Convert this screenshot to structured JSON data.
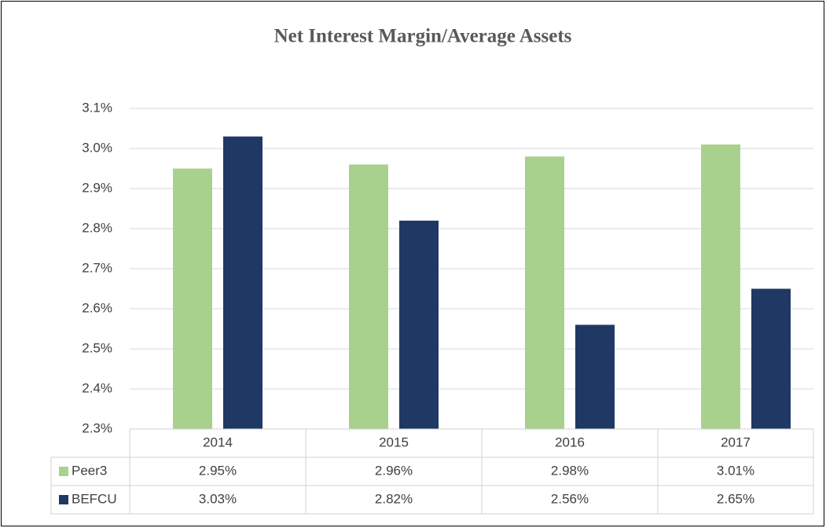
{
  "chart_data": {
    "type": "bar",
    "title": "Net Interest Margin/Average Assets",
    "categories": [
      "2014",
      "2015",
      "2016",
      "2017"
    ],
    "series": [
      {
        "name": "Peer3",
        "color": "#a9d18e",
        "values": [
          2.95,
          2.96,
          2.98,
          3.01
        ],
        "value_labels": [
          "2.95%",
          "2.96%",
          "2.98%",
          "3.01%"
        ]
      },
      {
        "name": "BEFCU",
        "color": "#1f3864",
        "values": [
          3.03,
          2.82,
          2.56,
          2.65
        ],
        "value_labels": [
          "3.03%",
          "2.82%",
          "2.56%",
          "2.65%"
        ]
      }
    ],
    "ylim": [
      2.3,
      3.1
    ],
    "yticks": [
      {
        "value": 2.3,
        "label": "2.3%"
      },
      {
        "value": 2.4,
        "label": "2.4%"
      },
      {
        "value": 2.5,
        "label": "2.5%"
      },
      {
        "value": 2.6,
        "label": "2.6%"
      },
      {
        "value": 2.7,
        "label": "2.7%"
      },
      {
        "value": 2.8,
        "label": "2.8%"
      },
      {
        "value": 2.9,
        "label": "2.9%"
      },
      {
        "value": 3.0,
        "label": "3.0%"
      },
      {
        "value": 3.1,
        "label": "3.1%"
      }
    ],
    "grid": true
  }
}
